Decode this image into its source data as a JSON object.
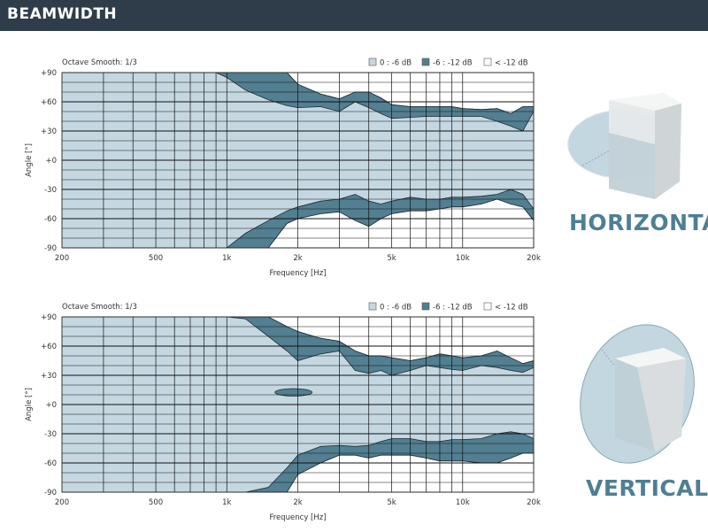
{
  "header": {
    "title": "BEAMWIDTH"
  },
  "colors": {
    "header_bg": "#2e3d49",
    "band_0_6": "#c5d8e1",
    "band_6_12": "#527f91",
    "band_lt_12": "#ffffff",
    "label": "#4e7f93"
  },
  "views": {
    "horizontal_label": "HORIZONTAL",
    "vertical_label": "VERTICAL"
  },
  "legend": [
    {
      "label": "0 : -6 dB",
      "color": "#c5d8e1"
    },
    {
      "label": "-6 : -12 dB",
      "color": "#527f91"
    },
    {
      "label": "< -12 dB",
      "color": "#ffffff"
    }
  ],
  "chart_data": [
    {
      "type": "area",
      "view": "horizontal",
      "annotation": "Octave Smooth: 1/3",
      "xlabel": "Frequency [Hz]",
      "ylabel": "Angle [°]",
      "x_scale": "log",
      "xlim": [
        200,
        20000
      ],
      "ylim": [
        -90,
        90
      ],
      "x_ticks": [
        200,
        500,
        1000,
        2000,
        5000,
        10000,
        20000
      ],
      "x_tick_labels": [
        "200",
        "500",
        "1k",
        "2k",
        "5k",
        "10k",
        "20k"
      ],
      "y_ticks": [
        90,
        60,
        30,
        0,
        -30,
        -60,
        -90
      ],
      "y_tick_labels": [
        "+90",
        "+60",
        "+30",
        "+0",
        "-30",
        "-60",
        "-90"
      ],
      "grid": true,
      "legend_position": "top-right",
      "frequency_hz": [
        200,
        250,
        300,
        350,
        400,
        450,
        500,
        550,
        600,
        700,
        800,
        900,
        1000,
        1200,
        1500,
        1800,
        2000,
        2500,
        3000,
        3500,
        4000,
        4500,
        5000,
        6000,
        7000,
        8000,
        9000,
        10000,
        12000,
        14000,
        16000,
        18000,
        20000
      ],
      "edge_minus6_upper_deg": [
        90,
        90,
        90,
        90,
        90,
        90,
        90,
        90,
        90,
        90,
        90,
        90,
        85,
        72,
        62,
        56,
        54,
        55,
        50,
        60,
        54,
        48,
        43,
        44,
        45,
        45,
        45,
        45,
        45,
        40,
        35,
        30,
        50
      ],
      "edge_minus12_upper_deg": [
        90,
        90,
        90,
        90,
        90,
        90,
        90,
        90,
        90,
        90,
        90,
        90,
        90,
        90,
        90,
        90,
        78,
        68,
        63,
        70,
        70,
        64,
        57,
        55,
        55,
        55,
        55,
        53,
        52,
        53,
        48,
        55,
        55
      ],
      "edge_minus6_lower_deg": [
        -90,
        -90,
        -90,
        -90,
        -90,
        -90,
        -90,
        -90,
        -90,
        -90,
        -90,
        -90,
        -90,
        -75,
        -62,
        -52,
        -48,
        -42,
        -40,
        -35,
        -42,
        -45,
        -42,
        -38,
        -40,
        -40,
        -38,
        -38,
        -37,
        -35,
        -30,
        -35,
        -50
      ],
      "edge_minus12_lower_deg": [
        -90,
        -90,
        -90,
        -90,
        -90,
        -90,
        -90,
        -90,
        -90,
        -90,
        -90,
        -90,
        -90,
        -90,
        -90,
        -65,
        -60,
        -55,
        -53,
        -62,
        -68,
        -60,
        -55,
        -52,
        -52,
        -50,
        -48,
        -48,
        -45,
        -40,
        -45,
        -48,
        -62
      ]
    },
    {
      "type": "area",
      "view": "vertical",
      "annotation": "Octave Smooth: 1/3",
      "xlabel": "Frequency [Hz]",
      "ylabel": "Angle [°]",
      "x_scale": "log",
      "xlim": [
        200,
        20000
      ],
      "ylim": [
        -90,
        90
      ],
      "x_ticks": [
        200,
        500,
        1000,
        2000,
        5000,
        10000,
        20000
      ],
      "x_tick_labels": [
        "200",
        "500",
        "1k",
        "2k",
        "5k",
        "10k",
        "20k"
      ],
      "y_ticks": [
        90,
        60,
        30,
        0,
        -30,
        -60,
        -90
      ],
      "y_tick_labels": [
        "+90",
        "+60",
        "+30",
        "+0",
        "-30",
        "-60",
        "-90"
      ],
      "grid": true,
      "legend_position": "top-right",
      "frequency_hz": [
        200,
        250,
        300,
        350,
        400,
        450,
        500,
        550,
        600,
        700,
        800,
        900,
        1000,
        1200,
        1500,
        1800,
        2000,
        2500,
        3000,
        3500,
        4000,
        4500,
        5000,
        6000,
        7000,
        8000,
        9000,
        10000,
        12000,
        14000,
        16000,
        18000,
        20000
      ],
      "edge_minus6_upper_deg": [
        90,
        90,
        90,
        90,
        90,
        90,
        90,
        90,
        90,
        90,
        90,
        90,
        90,
        88,
        70,
        55,
        45,
        52,
        55,
        35,
        32,
        35,
        30,
        35,
        40,
        38,
        36,
        35,
        40,
        38,
        35,
        33,
        38
      ],
      "edge_minus12_upper_deg": [
        90,
        90,
        90,
        90,
        90,
        90,
        90,
        90,
        90,
        90,
        90,
        90,
        90,
        90,
        90,
        80,
        75,
        68,
        65,
        55,
        50,
        50,
        48,
        45,
        48,
        52,
        50,
        48,
        50,
        55,
        48,
        42,
        45
      ],
      "edge_minus6_lower_deg": [
        -90,
        -90,
        -90,
        -90,
        -90,
        -90,
        -90,
        -90,
        -90,
        -90,
        -90,
        -90,
        -90,
        -90,
        -85,
        -65,
        -52,
        -43,
        -42,
        -43,
        -42,
        -38,
        -35,
        -35,
        -38,
        -38,
        -36,
        -36,
        -35,
        -30,
        -28,
        -30,
        -35
      ],
      "edge_minus12_lower_deg": [
        -90,
        -90,
        -90,
        -90,
        -90,
        -90,
        -90,
        -90,
        -90,
        -90,
        -90,
        -90,
        -90,
        -90,
        -90,
        -90,
        -72,
        -60,
        -52,
        -52,
        -55,
        -52,
        -52,
        -52,
        -55,
        -58,
        -58,
        -58,
        -60,
        -60,
        -55,
        -50,
        -50
      ],
      "secondary_lobe": {
        "frequency_hz": [
          1600,
          2300
        ],
        "angle_deg": [
          10,
          15
        ]
      }
    }
  ]
}
